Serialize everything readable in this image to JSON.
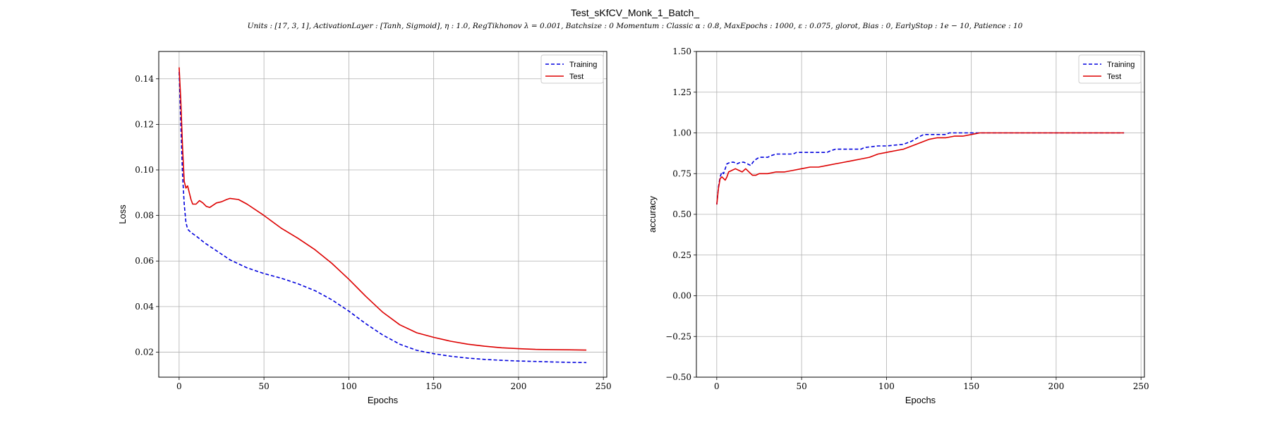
{
  "figure": {
    "title": "Test_sKfCV_Monk_1_Batch_",
    "subtitle": "Units : [17, 3, 1], ActivationLayer : [Tanh, Sigmoid], η : 1.0, RegTikhonov λ = 0.001, Batchsize : 0 Momentum : Classic α : 0.8, MaxEpochs : 1000, ε : 0.075, glorot, Bias : 0, EarlyStop : 1e − 10, Patience : 10"
  },
  "colors": {
    "training": "#0000dd",
    "test": "#dd0000",
    "grid": "#b0b0b0"
  },
  "chart_data": [
    {
      "type": "line",
      "xlabel": "Epochs",
      "ylabel": "Loss",
      "xlim": [
        -12,
        252
      ],
      "ylim": [
        0.009,
        0.152
      ],
      "xticks": [
        0,
        50,
        100,
        150,
        200,
        250
      ],
      "yticks": [
        0.02,
        0.04,
        0.06,
        0.08,
        0.1,
        0.12,
        0.14
      ],
      "ytick_labels": [
        "0.02",
        "0.04",
        "0.06",
        "0.08",
        "0.10",
        "0.12",
        "0.14"
      ],
      "grid": true,
      "legend_position": "upper right",
      "series": [
        {
          "name": "Training",
          "style": "dashed",
          "points": [
            [
              0,
              0.143
            ],
            [
              1,
              0.12
            ],
            [
              2,
              0.098
            ],
            [
              3,
              0.085
            ],
            [
              4,
              0.077
            ],
            [
              5,
              0.074
            ],
            [
              7,
              0.0725
            ],
            [
              10,
              0.071
            ],
            [
              15,
              0.068
            ],
            [
              20,
              0.0655
            ],
            [
              25,
              0.063
            ],
            [
              30,
              0.0605
            ],
            [
              40,
              0.057
            ],
            [
              50,
              0.0545
            ],
            [
              60,
              0.0525
            ],
            [
              70,
              0.05
            ],
            [
              80,
              0.047
            ],
            [
              90,
              0.043
            ],
            [
              100,
              0.038
            ],
            [
              110,
              0.0325
            ],
            [
              120,
              0.0275
            ],
            [
              130,
              0.0235
            ],
            [
              140,
              0.0208
            ],
            [
              150,
              0.0193
            ],
            [
              160,
              0.0182
            ],
            [
              170,
              0.0174
            ],
            [
              180,
              0.0168
            ],
            [
              190,
              0.0164
            ],
            [
              200,
              0.0161
            ],
            [
              210,
              0.0159
            ],
            [
              220,
              0.0157
            ],
            [
              230,
              0.0155
            ],
            [
              240,
              0.0154
            ]
          ]
        },
        {
          "name": "Test",
          "style": "solid",
          "points": [
            [
              0,
              0.145
            ],
            [
              1,
              0.13
            ],
            [
              2,
              0.11
            ],
            [
              3,
              0.095
            ],
            [
              4,
              0.092
            ],
            [
              5,
              0.093
            ],
            [
              6,
              0.09
            ],
            [
              7,
              0.087
            ],
            [
              8,
              0.085
            ],
            [
              10,
              0.085
            ],
            [
              12,
              0.0865
            ],
            [
              14,
              0.0855
            ],
            [
              16,
              0.084
            ],
            [
              18,
              0.0835
            ],
            [
              20,
              0.0845
            ],
            [
              22,
              0.0855
            ],
            [
              25,
              0.086
            ],
            [
              28,
              0.087
            ],
            [
              30,
              0.0875
            ],
            [
              35,
              0.087
            ],
            [
              40,
              0.085
            ],
            [
              50,
              0.08
            ],
            [
              60,
              0.0745
            ],
            [
              70,
              0.07
            ],
            [
              80,
              0.065
            ],
            [
              90,
              0.059
            ],
            [
              100,
              0.052
            ],
            [
              110,
              0.0445
            ],
            [
              120,
              0.0375
            ],
            [
              130,
              0.032
            ],
            [
              140,
              0.0285
            ],
            [
              150,
              0.0265
            ],
            [
              160,
              0.0248
            ],
            [
              170,
              0.0235
            ],
            [
              180,
              0.0226
            ],
            [
              190,
              0.0219
            ],
            [
              200,
              0.0215
            ],
            [
              210,
              0.0212
            ],
            [
              220,
              0.0211
            ],
            [
              230,
              0.021
            ],
            [
              240,
              0.0209
            ]
          ]
        }
      ]
    },
    {
      "type": "line",
      "xlabel": "Epochs",
      "ylabel": "accuracy",
      "xlim": [
        -12,
        252
      ],
      "ylim": [
        -0.5,
        1.5
      ],
      "xticks": [
        0,
        50,
        100,
        150,
        200,
        250
      ],
      "yticks": [
        -0.5,
        -0.25,
        0.0,
        0.25,
        0.5,
        0.75,
        1.0,
        1.25,
        1.5
      ],
      "ytick_labels": [
        "−0.50",
        "−0.25",
        "0.00",
        "0.25",
        "0.50",
        "0.75",
        "1.00",
        "1.25",
        "1.50"
      ],
      "grid": true,
      "legend_position": "upper right",
      "series": [
        {
          "name": "Training",
          "style": "dashed",
          "points": [
            [
              0,
              0.56
            ],
            [
              1,
              0.67
            ],
            [
              2,
              0.73
            ],
            [
              3,
              0.76
            ],
            [
              4,
              0.75
            ],
            [
              5,
              0.78
            ],
            [
              6,
              0.81
            ],
            [
              8,
              0.82
            ],
            [
              10,
              0.82
            ],
            [
              12,
              0.81
            ],
            [
              14,
              0.82
            ],
            [
              16,
              0.82
            ],
            [
              18,
              0.81
            ],
            [
              20,
              0.8
            ],
            [
              22,
              0.83
            ],
            [
              25,
              0.85
            ],
            [
              30,
              0.85
            ],
            [
              32,
              0.86
            ],
            [
              35,
              0.87
            ],
            [
              45,
              0.87
            ],
            [
              47,
              0.88
            ],
            [
              65,
              0.88
            ],
            [
              67,
              0.89
            ],
            [
              70,
              0.9
            ],
            [
              85,
              0.9
            ],
            [
              87,
              0.91
            ],
            [
              95,
              0.92
            ],
            [
              100,
              0.92
            ],
            [
              110,
              0.93
            ],
            [
              115,
              0.95
            ],
            [
              120,
              0.98
            ],
            [
              122,
              0.99
            ],
            [
              135,
              0.99
            ],
            [
              137,
              1.0
            ],
            [
              240,
              1.0
            ]
          ]
        },
        {
          "name": "Test",
          "style": "solid",
          "points": [
            [
              0,
              0.56
            ],
            [
              1,
              0.66
            ],
            [
              2,
              0.72
            ],
            [
              3,
              0.73
            ],
            [
              4,
              0.72
            ],
            [
              5,
              0.71
            ],
            [
              6,
              0.73
            ],
            [
              7,
              0.76
            ],
            [
              9,
              0.77
            ],
            [
              11,
              0.78
            ],
            [
              13,
              0.77
            ],
            [
              15,
              0.76
            ],
            [
              17,
              0.78
            ],
            [
              19,
              0.76
            ],
            [
              21,
              0.74
            ],
            [
              23,
              0.74
            ],
            [
              25,
              0.75
            ],
            [
              28,
              0.75
            ],
            [
              30,
              0.75
            ],
            [
              35,
              0.76
            ],
            [
              40,
              0.76
            ],
            [
              45,
              0.77
            ],
            [
              50,
              0.78
            ],
            [
              55,
              0.79
            ],
            [
              60,
              0.79
            ],
            [
              65,
              0.8
            ],
            [
              70,
              0.81
            ],
            [
              75,
              0.82
            ],
            [
              80,
              0.83
            ],
            [
              85,
              0.84
            ],
            [
              90,
              0.85
            ],
            [
              95,
              0.87
            ],
            [
              100,
              0.88
            ],
            [
              105,
              0.89
            ],
            [
              110,
              0.9
            ],
            [
              115,
              0.92
            ],
            [
              120,
              0.94
            ],
            [
              125,
              0.96
            ],
            [
              130,
              0.97
            ],
            [
              135,
              0.97
            ],
            [
              140,
              0.98
            ],
            [
              145,
              0.98
            ],
            [
              150,
              0.99
            ],
            [
              155,
              1.0
            ],
            [
              240,
              1.0
            ]
          ]
        }
      ]
    }
  ]
}
